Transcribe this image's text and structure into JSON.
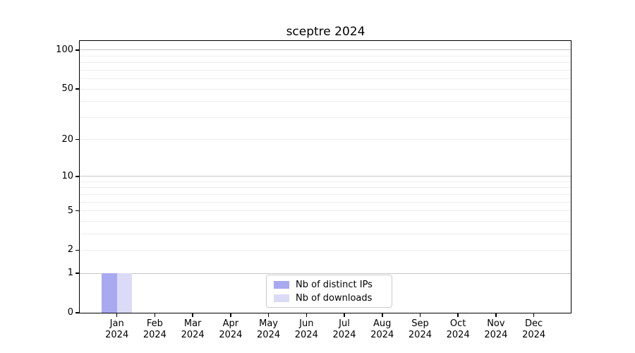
{
  "chart_data": {
    "type": "bar",
    "title": "sceptre 2024",
    "categories": [
      "Jan 2024",
      "Feb 2024",
      "Mar 2024",
      "Apr 2024",
      "May 2024",
      "Jun 2024",
      "Jul 2024",
      "Aug 2024",
      "Sep 2024",
      "Oct 2024",
      "Nov 2024",
      "Dec 2024"
    ],
    "series": [
      {
        "name": "Nb of distinct IPs",
        "color": "#a9a9f1",
        "values": [
          1,
          0,
          0,
          0,
          0,
          0,
          0,
          0,
          0,
          0,
          0,
          0
        ]
      },
      {
        "name": "Nb of downloads",
        "color": "#dbdbf7",
        "values": [
          1,
          0,
          0,
          0,
          0,
          0,
          0,
          0,
          0,
          0,
          0,
          0
        ]
      }
    ],
    "xlabel": "",
    "ylabel": "",
    "yscale": "log10(1+v)",
    "ylim": [
      0,
      118
    ],
    "yticks": [
      0,
      1,
      2,
      5,
      10,
      20,
      50,
      100
    ],
    "y_major_gridlines": [
      1,
      10,
      100
    ],
    "y_minor_gridlines": [
      2,
      3,
      4,
      5,
      6,
      7,
      8,
      9,
      20,
      30,
      40,
      50,
      60,
      70,
      80,
      90
    ],
    "grid": true,
    "legend_position": "lower center",
    "background_color": "#ffffff",
    "axis_color": "#000000"
  }
}
